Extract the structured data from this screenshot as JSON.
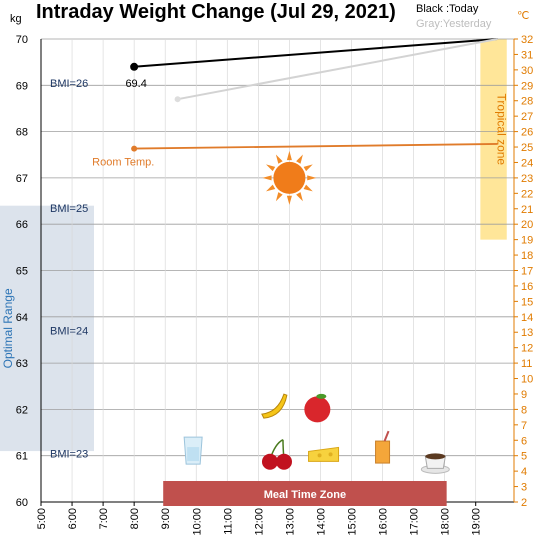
{
  "title": "Intraday Weight Change (Jul 29, 2021)",
  "legend": {
    "today": "Black :Today",
    "yesterday": "Gray:Yesterday"
  },
  "units": {
    "left": "kg",
    "right": "℃"
  },
  "colors": {
    "today": "#000000",
    "yesterday": "#d3d3d3",
    "room_temp": "#e07b2a",
    "grid": "#9e9e9e",
    "optimal_band": "#dce3ec",
    "tropical_band": "#ffe699",
    "meal_bar": "#c0504d",
    "right_axis": "#e07b00",
    "bmi_text": "#1f3864"
  },
  "chart_data": {
    "type": "line",
    "x_ticks": [
      "5:00",
      "6:00",
      "7:00",
      "8:00",
      "9:00",
      "10:00",
      "11:00",
      "12:00",
      "13:00",
      "14:00",
      "15:00",
      "16:00",
      "17:00",
      "18:00",
      "19:00"
    ],
    "xlim_hours": [
      5,
      19.7
    ],
    "y_left_ticks": [
      "60",
      "61",
      "62",
      "63",
      "64",
      "65",
      "66",
      "67",
      "68",
      "69",
      "70"
    ],
    "ylim_left": [
      60,
      70
    ],
    "y_right_ticks": [
      "2",
      "3",
      "4",
      "5",
      "6",
      "7",
      "8",
      "9",
      "10",
      "11",
      "12",
      "13",
      "14",
      "15",
      "16",
      "17",
      "18",
      "19",
      "20",
      "21",
      "22",
      "23",
      "24",
      "25",
      "26",
      "27",
      "28",
      "29",
      "30",
      "31",
      "32"
    ],
    "ylim_right": [
      2,
      32
    ],
    "series": [
      {
        "key": "today",
        "points": [
          [
            8.0,
            69.4
          ],
          [
            19.7,
            70.0
          ]
        ],
        "marker_at": 0,
        "label": "69.4"
      },
      {
        "key": "yesterday",
        "points": [
          [
            9.4,
            68.7
          ],
          [
            19.7,
            70.0
          ]
        ],
        "marker_at": 0
      },
      {
        "key": "room_temp",
        "axis": "right",
        "points": [
          [
            8.0,
            24.9
          ],
          [
            19.7,
            25.2
          ]
        ],
        "marker_at": 0,
        "name": "Room Temp."
      }
    ],
    "bmi_lines": [
      {
        "value": 69.05,
        "label": "BMI=26"
      },
      {
        "value": 66.35,
        "label": "BMI=25"
      },
      {
        "value": 63.7,
        "label": "BMI=24"
      },
      {
        "value": 61.05,
        "label": "BMI=23"
      }
    ],
    "optimal_range": {
      "from": 61.1,
      "to": 66.4,
      "label": "Optimal Range"
    },
    "tropical_zone": {
      "from_c": 19,
      "to_c": 32,
      "x_from": 19.15,
      "x_to": 20.0,
      "label": "Tropical zone"
    },
    "meal_zone": {
      "x_from": 9.0,
      "x_to": 18.0,
      "label": "Meal Time Zone"
    },
    "icons": [
      {
        "name": "sun-icon",
        "x": 13.0,
        "y": 67.0
      },
      {
        "name": "banana-icon",
        "x": 12.5,
        "y": 62.07
      },
      {
        "name": "apple-icon",
        "x": 13.9,
        "y": 62.0
      },
      {
        "name": "water-glass-icon",
        "x": 9.9,
        "y": 61.1
      },
      {
        "name": "cherries-icon",
        "x": 12.6,
        "y": 61.0
      },
      {
        "name": "cheese-icon",
        "x": 14.1,
        "y": 61.05
      },
      {
        "name": "juice-icon",
        "x": 16.0,
        "y": 61.1
      },
      {
        "name": "coffee-icon",
        "x": 17.7,
        "y": 60.9
      }
    ]
  }
}
